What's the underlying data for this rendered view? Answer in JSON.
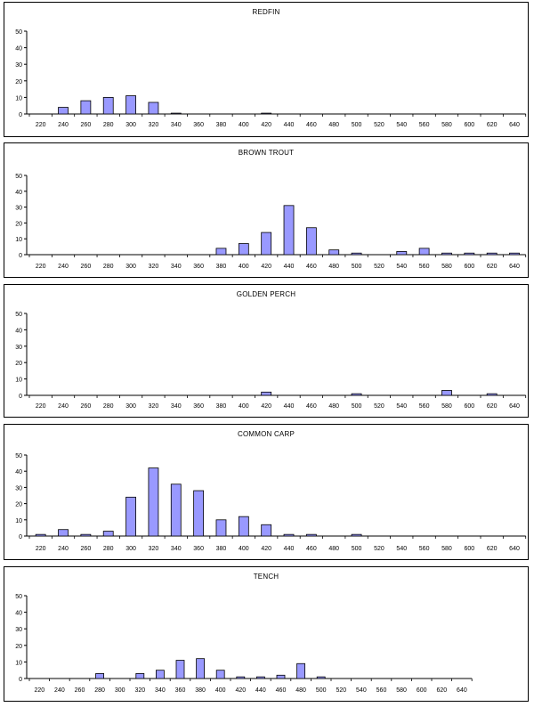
{
  "chart_data": [
    {
      "type": "bar",
      "title": "REDFIN",
      "categories": [
        "220",
        "240",
        "260",
        "280",
        "300",
        "320",
        "340",
        "360",
        "380",
        "400",
        "420",
        "440",
        "460",
        "480",
        "500",
        "520",
        "540",
        "560",
        "580",
        "600",
        "620",
        "640"
      ],
      "values": [
        0,
        4,
        8,
        10,
        11,
        7,
        0.5,
        0,
        0,
        0,
        0.5,
        0,
        0,
        0,
        0,
        0,
        0,
        0,
        0,
        0,
        0,
        0
      ],
      "ylim": [
        0,
        50
      ],
      "yticks": [
        0,
        10,
        20,
        30,
        40,
        50
      ],
      "colors": {
        "bar": "#9999ff"
      }
    },
    {
      "type": "bar",
      "title": "BROWN TROUT",
      "categories": [
        "220",
        "240",
        "260",
        "280",
        "300",
        "320",
        "340",
        "360",
        "380",
        "400",
        "420",
        "440",
        "460",
        "480",
        "500",
        "520",
        "540",
        "560",
        "580",
        "600",
        "620",
        "640"
      ],
      "values": [
        0,
        0,
        0,
        0,
        0,
        0,
        0,
        0,
        4,
        7,
        14,
        31,
        17,
        3,
        1,
        0,
        2,
        4,
        1,
        1,
        1,
        1
      ],
      "ylim": [
        0,
        50
      ],
      "yticks": [
        0,
        10,
        20,
        30,
        40,
        50
      ],
      "colors": {
        "bar": "#9999ff"
      }
    },
    {
      "type": "bar",
      "title": "GOLDEN PERCH",
      "categories": [
        "220",
        "240",
        "260",
        "280",
        "300",
        "320",
        "340",
        "360",
        "380",
        "400",
        "420",
        "440",
        "460",
        "480",
        "500",
        "520",
        "540",
        "560",
        "580",
        "600",
        "620",
        "640"
      ],
      "values": [
        0,
        0,
        0,
        0,
        0,
        0,
        0,
        0,
        0,
        0,
        2,
        0,
        0,
        0,
        1,
        0,
        0,
        0,
        3,
        0,
        1,
        0
      ],
      "ylim": [
        0,
        50
      ],
      "yticks": [
        0,
        10,
        20,
        30,
        40,
        50
      ],
      "colors": {
        "bar": "#9999ff"
      }
    },
    {
      "type": "bar",
      "title": "COMMON CARP",
      "categories": [
        "220",
        "240",
        "260",
        "280",
        "300",
        "320",
        "340",
        "360",
        "380",
        "400",
        "420",
        "440",
        "460",
        "480",
        "500",
        "520",
        "540",
        "560",
        "580",
        "600",
        "620",
        "640"
      ],
      "values": [
        1,
        4,
        1,
        3,
        24,
        42,
        32,
        28,
        10,
        12,
        7,
        1,
        1,
        0,
        1,
        0,
        0,
        0,
        0,
        0,
        0,
        0
      ],
      "ylim": [
        0,
        50
      ],
      "yticks": [
        0,
        10,
        20,
        30,
        40,
        50
      ],
      "colors": {
        "bar": "#9999ff"
      }
    },
    {
      "type": "bar",
      "title": "TENCH",
      "categories": [
        "220",
        "240",
        "260",
        "280",
        "300",
        "320",
        "340",
        "360",
        "380",
        "400",
        "420",
        "440",
        "460",
        "480",
        "500",
        "520",
        "540",
        "560",
        "580",
        "600",
        "620",
        "640"
      ],
      "values": [
        0,
        0,
        0,
        3,
        0,
        3,
        5,
        11,
        12,
        5,
        1,
        1,
        2,
        9,
        1,
        0,
        0,
        0,
        0,
        0,
        0,
        0
      ],
      "ylim": [
        0,
        50
      ],
      "yticks": [
        0,
        10,
        20,
        30,
        40,
        50
      ],
      "colors": {
        "bar": "#9999ff"
      }
    }
  ]
}
